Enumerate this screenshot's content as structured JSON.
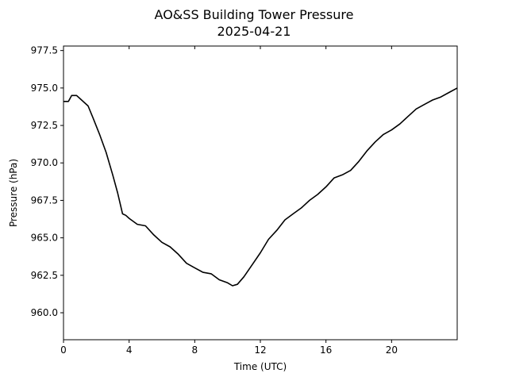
{
  "chart_data": {
    "type": "line",
    "title": "AO&SS Building Tower Pressure",
    "subtitle": "2025-04-21",
    "xlabel": "Time (UTC)",
    "ylabel": "Pressure (hPa)",
    "xlim": [
      0,
      24
    ],
    "ylim": [
      958.2,
      977.8
    ],
    "xticks": [
      0,
      4,
      8,
      12,
      16,
      20
    ],
    "xtick_labels": [
      "0",
      "4",
      "8",
      "12",
      "16",
      "20"
    ],
    "yticks": [
      960.0,
      962.5,
      965.0,
      967.5,
      970.0,
      972.5,
      975.0,
      977.5
    ],
    "ytick_labels": [
      "960.0",
      "962.5",
      "965.0",
      "967.5",
      "970.0",
      "972.5",
      "975.0",
      "977.5"
    ],
    "grid": false,
    "line_color": "#000000",
    "series": [
      {
        "x": [
          0,
          0.3,
          0.5,
          0.8,
          1.0,
          1.5,
          1.8,
          2.2,
          2.6,
          3.0,
          3.3,
          3.6,
          3.8,
          4.0,
          4.5,
          5.0,
          5.5,
          6.0,
          6.5,
          7.0,
          7.5,
          8.0,
          8.5,
          9.0,
          9.5,
          10.0,
          10.3,
          10.6,
          11.0,
          11.5,
          12.0,
          12.5,
          13.0,
          13.5,
          14.0,
          14.5,
          15.0,
          15.5,
          16.0,
          16.5,
          17.0,
          17.5,
          18.0,
          18.5,
          19.0,
          19.5,
          20.0,
          20.5,
          21.0,
          21.5,
          22.0,
          22.5,
          23.0,
          23.5,
          24.0
        ],
        "y": [
          974.1,
          974.1,
          974.5,
          974.5,
          974.3,
          973.8,
          973.0,
          971.9,
          970.7,
          969.2,
          968.0,
          966.6,
          966.5,
          966.3,
          965.9,
          965.8,
          965.2,
          964.7,
          964.4,
          963.9,
          963.3,
          963.0,
          962.7,
          962.6,
          962.2,
          962.0,
          961.8,
          961.9,
          962.4,
          963.2,
          964.0,
          964.9,
          965.5,
          966.2,
          966.6,
          967.0,
          967.5,
          967.9,
          968.4,
          969.0,
          969.2,
          969.5,
          970.1,
          970.8,
          971.4,
          971.9,
          972.2,
          972.6,
          973.1,
          973.6,
          973.9,
          974.2,
          974.4,
          974.7,
          975.0
        ]
      }
    ]
  }
}
